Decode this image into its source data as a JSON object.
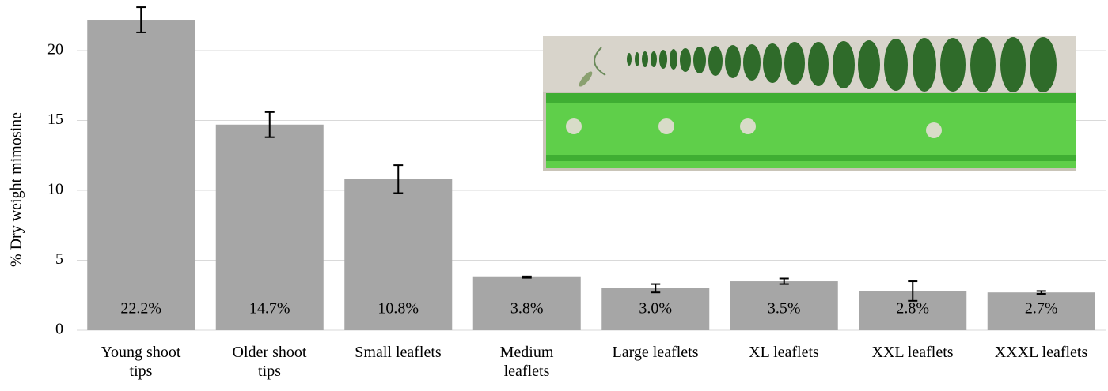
{
  "chart_data": {
    "type": "bar",
    "y_label": "% Dry weight mimosine",
    "categories": [
      "Young shoot\ntips",
      "Older shoot\ntips",
      "Small leaflets",
      "Medium\nleaflets",
      "Large leaflets",
      "XL leaflets",
      "XXL leaflets",
      "XXXL leaflets"
    ],
    "values": [
      22.2,
      14.7,
      10.8,
      3.8,
      3.0,
      3.5,
      2.8,
      2.7
    ],
    "value_labels": [
      "22.2%",
      "14.7%",
      "10.8%",
      "3.8%",
      "3.0%",
      "3.5%",
      "2.8%",
      "2.7%"
    ],
    "errors": [
      0.9,
      0.9,
      1.0,
      0.05,
      0.3,
      0.2,
      0.7,
      0.1
    ],
    "color": "#a6a6a6",
    "error_color": "#000000",
    "ylim": [
      0,
      23.5
    ],
    "yticks": [
      0,
      5,
      10,
      15,
      20
    ],
    "grid": true
  }
}
